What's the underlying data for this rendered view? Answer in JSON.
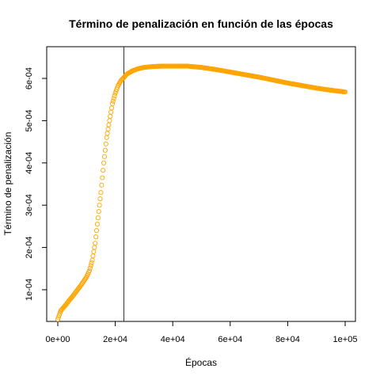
{
  "chart_data": {
    "type": "scatter",
    "title": "Término de penalización en función de las épocas",
    "xlabel": "Épocas",
    "ylabel": "Término de penalización",
    "xlim": [
      0,
      100000
    ],
    "ylim": [
      4e-05,
      0.00066
    ],
    "x_ticks": [
      {
        "value": 0,
        "label": "0e+00"
      },
      {
        "value": 20000,
        "label": "2e+04"
      },
      {
        "value": 40000,
        "label": "4e+04"
      },
      {
        "value": 60000,
        "label": "6e+04"
      },
      {
        "value": 80000,
        "label": "8e+04"
      },
      {
        "value": 100000,
        "label": "1e+05"
      }
    ],
    "y_ticks": [
      {
        "value": 0.0001,
        "label": "1e-04"
      },
      {
        "value": 0.0002,
        "label": "2e-04"
      },
      {
        "value": 0.0003,
        "label": "3e-04"
      },
      {
        "value": 0.0004,
        "label": "4e-04"
      },
      {
        "value": 0.0005,
        "label": "5e-04"
      },
      {
        "value": 0.0006,
        "label": "6e-04"
      }
    ],
    "grid": false,
    "legend": "none",
    "marker": "open-circle",
    "series_color": "#FFA500",
    "vline": {
      "x": 23000,
      "color": "#333333"
    },
    "series": [
      {
        "x": [
          0,
          1000,
          2000,
          3000,
          4000,
          5000,
          6000,
          7000,
          8000,
          9000,
          10000,
          11000,
          12000,
          13000,
          14000,
          15000,
          16000,
          17000,
          18000,
          19000,
          20000,
          21000,
          22000,
          23000,
          24000,
          26000,
          28000,
          30000,
          33000,
          36000,
          40000,
          45000,
          50000,
          55000,
          60000,
          65000,
          70000,
          75000,
          80000,
          85000,
          90000,
          95000,
          100000
        ],
        "y": [
          3e-05,
          5e-05,
          5.8e-05,
          6.6e-05,
          7.5e-05,
          8.3e-05,
          9.2e-05,
          0.000101,
          0.00011,
          0.00012,
          0.00013,
          0.000145,
          0.00017,
          0.00021,
          0.00027,
          0.00033,
          0.0004,
          0.00046,
          0.0005,
          0.00054,
          0.000565,
          0.000583,
          0.000595,
          0.000602,
          0.00061,
          0.000618,
          0.000623,
          0.000626,
          0.000628,
          0.000629,
          0.000629,
          0.000629,
          0.000626,
          0.000621,
          0.000615,
          0.000609,
          0.000603,
          0.000596,
          0.000589,
          0.000583,
          0.000577,
          0.000572,
          0.000568
        ]
      }
    ]
  }
}
